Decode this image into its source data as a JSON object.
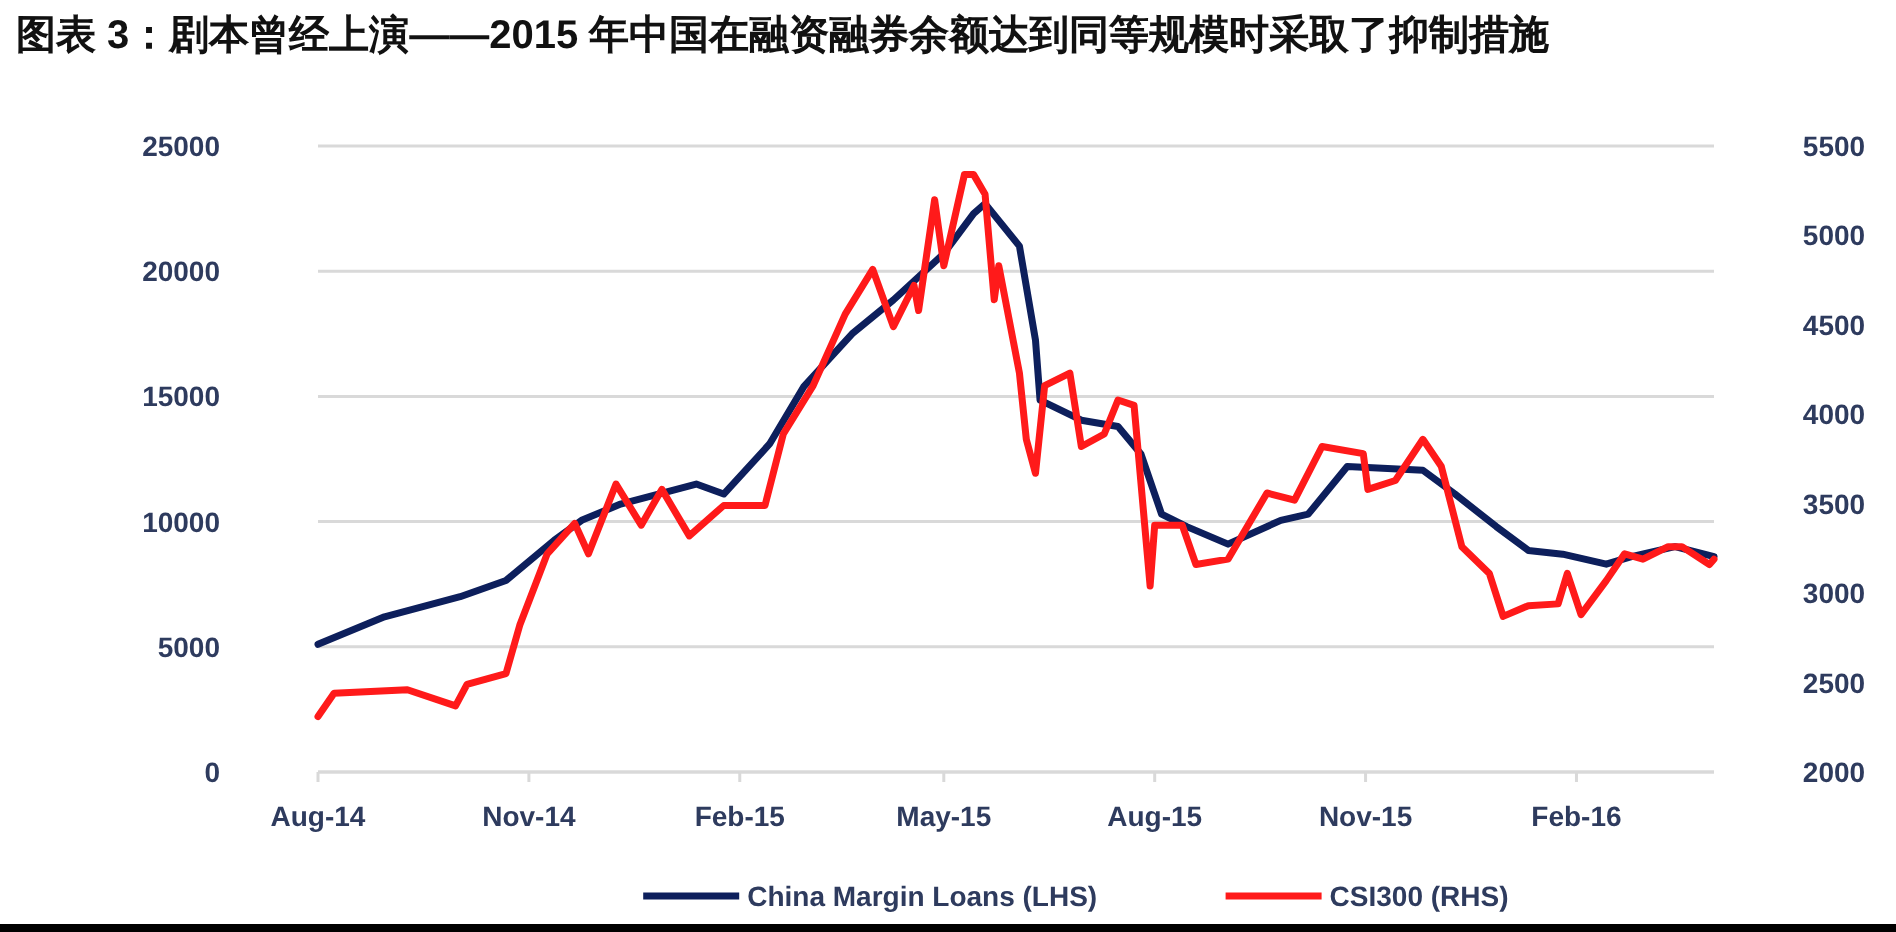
{
  "chart_data": {
    "type": "line",
    "title": "图表 3：剧本曾经上演——2015 年中国在融资融券余额达到同等规模时采取了抑制措施",
    "xlim": [
      "2014-08-01",
      "2016-04-01"
    ],
    "xticks": [
      {
        "value": "2014-08-01",
        "label": "Aug-14"
      },
      {
        "value": "2014-11-01",
        "label": "Nov-14"
      },
      {
        "value": "2015-02-01",
        "label": "Feb-15"
      },
      {
        "value": "2015-05-01",
        "label": "May-15"
      },
      {
        "value": "2015-08-01",
        "label": "Aug-15"
      },
      {
        "value": "2015-11-01",
        "label": "Nov-15"
      },
      {
        "value": "2016-02-01",
        "label": "Feb-16"
      }
    ],
    "ylim": [
      0,
      25000
    ],
    "yticks": [
      0,
      5000,
      10000,
      15000,
      20000,
      25000
    ],
    "y2lim": [
      2000,
      5500
    ],
    "y2ticks": [
      2000,
      2500,
      3000,
      3500,
      4000,
      4500,
      5000,
      5500
    ],
    "grid": "y",
    "legend": "bottom",
    "line_style": "solid",
    "marker": "none",
    "series": [
      {
        "name": "China Margin Loans (LHS)",
        "color": "#0d1f5c",
        "x": [
          "2014-08-01",
          "2014-08-30",
          "2014-10-02",
          "2014-10-22",
          "2014-11-12",
          "2014-11-24",
          "2014-12-11",
          "2015-01-13",
          "2015-01-25",
          "2015-02-14",
          "2015-03-01",
          "2015-03-22",
          "2015-04-09",
          "2015-05-01",
          "2015-05-14",
          "2015-05-19",
          "2015-06-03",
          "2015-06-10",
          "2015-06-12",
          "2015-06-30",
          "2015-07-16",
          "2015-07-26",
          "2015-08-04",
          "2015-08-15",
          "2015-09-02",
          "2015-09-25",
          "2015-10-07",
          "2015-10-24",
          "2015-11-26",
          "2015-12-10",
          "2015-12-28",
          "2016-01-11",
          "2016-01-26",
          "2016-02-14",
          "2016-02-25",
          "2016-03-15",
          "2016-04-01"
        ],
        "values": [
          5100,
          6200,
          7000,
          7650,
          9250,
          10050,
          10700,
          11500,
          11100,
          13100,
          15400,
          17500,
          18850,
          20700,
          22300,
          22700,
          21000,
          17250,
          14850,
          14050,
          13800,
          12700,
          10300,
          9800,
          9100,
          10050,
          10300,
          12200,
          12050,
          11100,
          9800,
          8850,
          8700,
          8300,
          8600,
          9000,
          8600
        ]
      },
      {
        "name": "CSI300 (RHS)",
        "color": "#ff1a1a",
        "axis": "y2",
        "x": [
          "2014-08-01",
          "2014-08-08",
          "2014-09-09",
          "2014-09-30",
          "2014-10-05",
          "2014-10-22",
          "2014-10-28",
          "2014-11-09",
          "2014-11-21",
          "2014-11-27",
          "2014-12-09",
          "2014-12-20",
          "2014-12-29",
          "2015-01-10",
          "2015-01-25",
          "2015-02-12",
          "2015-02-20",
          "2015-03-05",
          "2015-03-19",
          "2015-03-31",
          "2015-04-09",
          "2015-04-18",
          "2015-04-20",
          "2015-04-27",
          "2015-05-01",
          "2015-05-10",
          "2015-05-14",
          "2015-05-19",
          "2015-05-23",
          "2015-05-25",
          "2015-06-03",
          "2015-06-06",
          "2015-06-10",
          "2015-06-14",
          "2015-06-25",
          "2015-06-30",
          "2015-07-10",
          "2015-07-16",
          "2015-07-23",
          "2015-07-30",
          "2015-08-01",
          "2015-08-13",
          "2015-08-19",
          "2015-09-02",
          "2015-09-19",
          "2015-10-01",
          "2015-10-13",
          "2015-10-31",
          "2015-11-02",
          "2015-11-14",
          "2015-11-26",
          "2015-12-04",
          "2015-12-13",
          "2015-12-25",
          "2015-12-31",
          "2016-01-11",
          "2016-01-24",
          "2016-01-28",
          "2016-02-03",
          "2016-02-14",
          "2016-02-22",
          "2016-03-01",
          "2016-03-12",
          "2016-03-18",
          "2016-03-30",
          "2016-04-01"
        ],
        "values": [
          2310,
          2440,
          2460,
          2370,
          2490,
          2550,
          2820,
          3220,
          3390,
          3220,
          3610,
          3380,
          3580,
          3320,
          3490,
          3490,
          3890,
          4160,
          4560,
          4810,
          4490,
          4720,
          4580,
          5200,
          4830,
          5340,
          5340,
          5230,
          4640,
          4830,
          4230,
          3860,
          3670,
          4160,
          4230,
          3820,
          3890,
          4080,
          4050,
          3040,
          3380,
          3380,
          3160,
          3190,
          3560,
          3520,
          3820,
          3780,
          3580,
          3630,
          3860,
          3710,
          3260,
          3110,
          2870,
          2930,
          2940,
          3110,
          2880,
          3070,
          3220,
          3190,
          3260,
          3260,
          3160,
          3190
        ]
      }
    ]
  }
}
